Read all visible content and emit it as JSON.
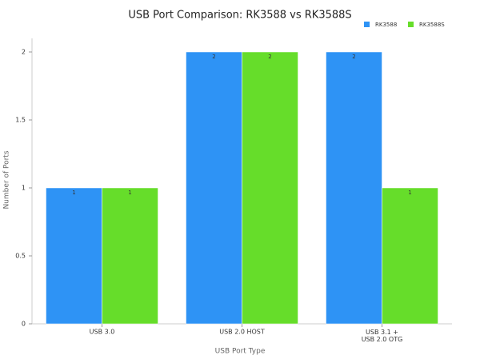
{
  "chart_data": {
    "type": "bar",
    "title": "USB Port Comparison: RK3588 vs RK3588S",
    "x_label": "USB Port Type",
    "y_label": "Number of Ports",
    "categories": [
      "USB 3.0",
      "USB 2.0 HOST",
      "USB 3.1 +\nUSB 2.0 OTG"
    ],
    "series": [
      {
        "name": "RK3588",
        "color": "#2e93f5",
        "values": [
          1,
          2,
          2
        ]
      },
      {
        "name": "RK3588S",
        "color": "#66dd2a",
        "values": [
          1,
          2,
          1
        ]
      }
    ],
    "ylim": [
      0,
      2.1
    ],
    "yticks": [
      0,
      0.5,
      1,
      1.5,
      2
    ],
    "grid": false,
    "legend": "top-right"
  }
}
